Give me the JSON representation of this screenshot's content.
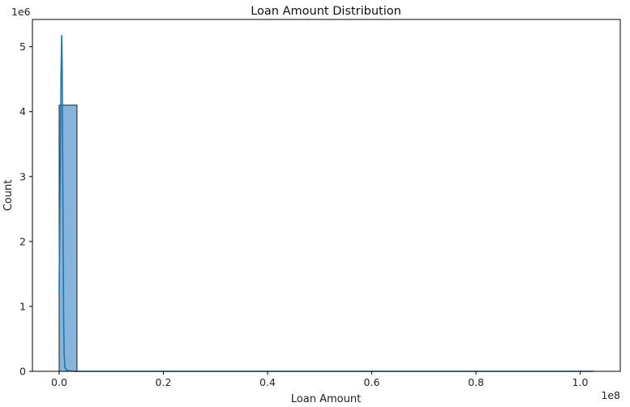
{
  "chart_data": {
    "type": "bar",
    "title": "Loan Amount Distribution",
    "xlabel": "Loan Amount",
    "ylabel": "Count",
    "x_offset_label": "1e8",
    "y_offset_label": "1e6",
    "xlim": [
      -0.0513,
      1.077
    ],
    "ylim": [
      0,
      5.42
    ],
    "x_ticks": [
      {
        "value": 0.0,
        "label": "0.0"
      },
      {
        "value": 0.2,
        "label": "0.2"
      },
      {
        "value": 0.4,
        "label": "0.4"
      },
      {
        "value": 0.6,
        "label": "0.6"
      },
      {
        "value": 0.8,
        "label": "0.8"
      },
      {
        "value": 1.0,
        "label": "1.0"
      }
    ],
    "y_ticks": [
      {
        "value": 0,
        "label": "0"
      },
      {
        "value": 1,
        "label": "1"
      },
      {
        "value": 2,
        "label": "2"
      },
      {
        "value": 3,
        "label": "3"
      },
      {
        "value": 4,
        "label": "4"
      },
      {
        "value": 5,
        "label": "5"
      }
    ],
    "bins": [
      {
        "start": 0.0,
        "end": 0.0342,
        "count": 4.1
      },
      {
        "start": 0.0342,
        "end": 0.0684,
        "count": 0.0
      },
      {
        "start": 0.0684,
        "end": 0.1026,
        "count": 0.0
      },
      {
        "start": 0.1026,
        "end": 0.1368,
        "count": 0.0
      },
      {
        "start": 0.1368,
        "end": 0.171,
        "count": 0.0
      },
      {
        "start": 0.171,
        "end": 0.2052,
        "count": 0.0
      },
      {
        "start": 0.2052,
        "end": 0.2394,
        "count": 0.0
      },
      {
        "start": 0.2394,
        "end": 0.2736,
        "count": 0.0
      },
      {
        "start": 0.2736,
        "end": 0.3078,
        "count": 0.0
      },
      {
        "start": 0.3078,
        "end": 0.342,
        "count": 0.0
      },
      {
        "start": 0.342,
        "end": 0.3762,
        "count": 0.0
      },
      {
        "start": 0.3762,
        "end": 0.4104,
        "count": 0.0
      },
      {
        "start": 0.4104,
        "end": 0.4446,
        "count": 0.0
      },
      {
        "start": 0.4446,
        "end": 0.4788,
        "count": 0.0
      },
      {
        "start": 0.4788,
        "end": 0.513,
        "count": 0.0
      },
      {
        "start": 0.513,
        "end": 0.5472,
        "count": 0.0
      },
      {
        "start": 0.5472,
        "end": 0.5814,
        "count": 0.0
      },
      {
        "start": 0.5814,
        "end": 0.6156,
        "count": 0.0
      },
      {
        "start": 0.6156,
        "end": 0.6498,
        "count": 0.0
      },
      {
        "start": 0.6498,
        "end": 0.684,
        "count": 0.0
      },
      {
        "start": 0.684,
        "end": 0.7182,
        "count": 0.0
      },
      {
        "start": 0.7182,
        "end": 0.7524,
        "count": 0.0
      },
      {
        "start": 0.7524,
        "end": 0.7866,
        "count": 0.0
      },
      {
        "start": 0.7866,
        "end": 0.8208,
        "count": 0.0
      },
      {
        "start": 0.8208,
        "end": 0.855,
        "count": 0.0
      },
      {
        "start": 0.855,
        "end": 0.8892,
        "count": 0.0
      },
      {
        "start": 0.8892,
        "end": 0.9234,
        "count": 0.0
      },
      {
        "start": 0.9234,
        "end": 0.9576,
        "count": 0.0
      },
      {
        "start": 0.9576,
        "end": 0.9918,
        "count": 0.0
      },
      {
        "start": 0.9918,
        "end": 1.026,
        "count": 0.0
      }
    ],
    "kde_curve": [
      {
        "x": 0.0,
        "y": 1.2
      },
      {
        "x": 0.0015,
        "y": 2.6
      },
      {
        "x": 0.0035,
        "y": 4.5
      },
      {
        "x": 0.0048,
        "y": 5.18
      },
      {
        "x": 0.0058,
        "y": 4.7
      },
      {
        "x": 0.0066,
        "y": 3.6
      },
      {
        "x": 0.0075,
        "y": 2.2
      },
      {
        "x": 0.0085,
        "y": 0.9
      },
      {
        "x": 0.0095,
        "y": 0.3
      },
      {
        "x": 0.011,
        "y": 0.06
      },
      {
        "x": 0.015,
        "y": 0.01
      },
      {
        "x": 0.03,
        "y": 0.0
      },
      {
        "x": 1.026,
        "y": 0.0
      }
    ],
    "bar_fill": "#86B4DA",
    "bar_edge": "#1f1f1f",
    "line_color": "#1F77B4",
    "grid": false,
    "legend": "none"
  }
}
